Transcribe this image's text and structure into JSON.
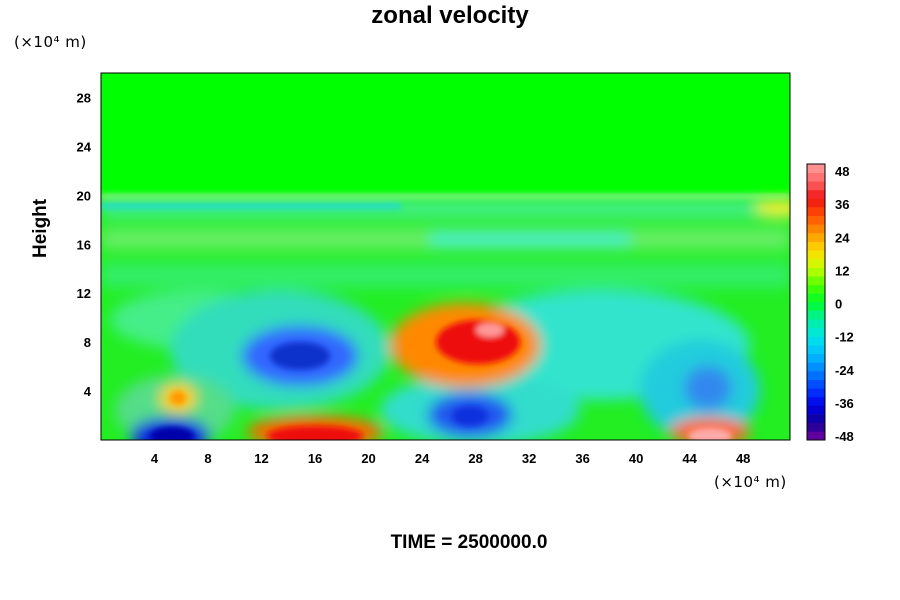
{
  "chart_data": {
    "type": "heatmap",
    "title": "zonal velocity",
    "ylabel": "Height",
    "y_unit": "(×10⁴ m)",
    "x_unit": "(×10⁴ m)",
    "time_label": "TIME = 2500000.0",
    "xlim": [
      0,
      51.5
    ],
    "ylim": [
      0,
      30
    ],
    "x_ticks": [
      4,
      8,
      12,
      16,
      20,
      24,
      28,
      32,
      36,
      40,
      44,
      48
    ],
    "y_ticks": [
      4,
      8,
      12,
      16,
      20,
      24,
      28
    ],
    "colorbar": {
      "range": [
        -48,
        48
      ],
      "ticks": [
        48,
        36,
        24,
        12,
        0,
        -12,
        -24,
        -36,
        -48
      ]
    },
    "features": [
      {
        "x": 28,
        "y": 8.5,
        "value": 40
      },
      {
        "x": 25,
        "y": 9.5,
        "value": 30
      },
      {
        "x": 15.5,
        "y": 1,
        "value": 38
      },
      {
        "x": 45.5,
        "y": 0.5,
        "value": 45
      },
      {
        "x": 5.5,
        "y": 0.3,
        "value": -44
      },
      {
        "x": 15.5,
        "y": 6.8,
        "value": -30
      },
      {
        "x": 27,
        "y": 1.8,
        "value": -26
      },
      {
        "x": 45,
        "y": 4,
        "value": -18
      },
      {
        "x": 5.5,
        "y": 3.5,
        "value": 22
      }
    ]
  }
}
